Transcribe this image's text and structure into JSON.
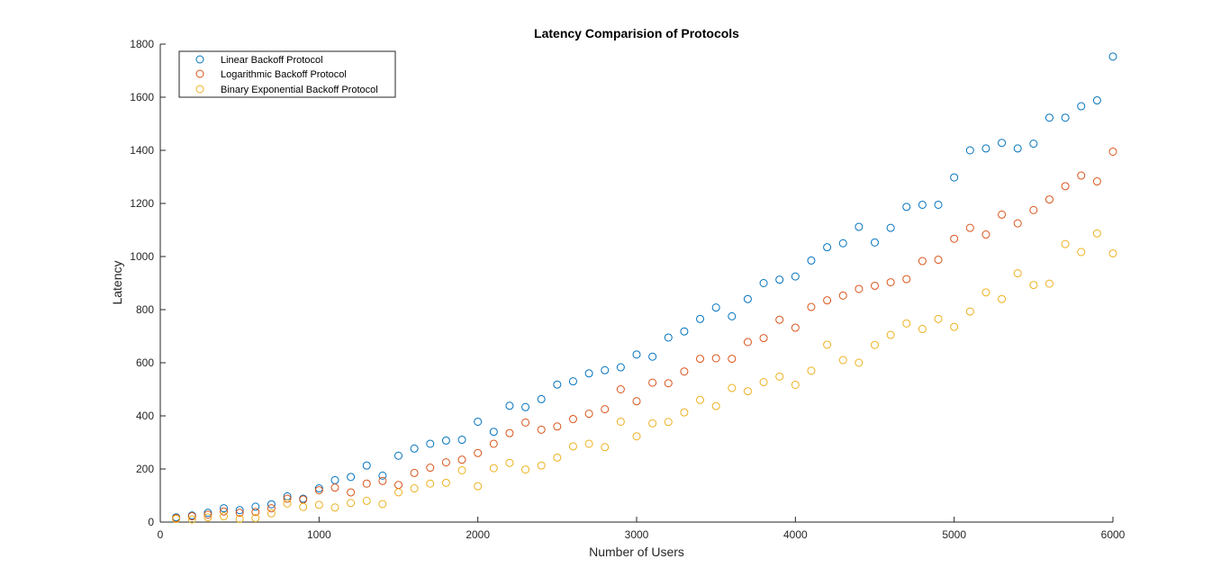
{
  "chart_data": {
    "type": "scatter",
    "title": "Latency Comparision of Protocols",
    "xlabel": "Number of Users",
    "ylabel": "Latency",
    "xlim": [
      0,
      6000
    ],
    "ylim": [
      0,
      1800
    ],
    "xticks": [
      0,
      1000,
      2000,
      3000,
      4000,
      5000,
      6000
    ],
    "yticks": [
      0,
      200,
      400,
      600,
      800,
      1000,
      1200,
      1400,
      1600,
      1800
    ],
    "grid": false,
    "legend_position": "top-left",
    "marker": "circle-open",
    "x": [
      100,
      200,
      300,
      400,
      500,
      600,
      700,
      800,
      900,
      1000,
      1100,
      1200,
      1300,
      1400,
      1500,
      1600,
      1700,
      1800,
      1900,
      2000,
      2100,
      2200,
      2300,
      2400,
      2500,
      2600,
      2700,
      2800,
      2900,
      3000,
      3100,
      3200,
      3300,
      3400,
      3500,
      3600,
      3700,
      3800,
      3900,
      4000,
      4100,
      4200,
      4300,
      4400,
      4500,
      4600,
      4700,
      4800,
      4900,
      5000,
      5100,
      5200,
      5300,
      5400,
      5500,
      5600,
      5700,
      5800,
      5900,
      6000
    ],
    "series": [
      {
        "name": "Linear Backoff Protocol",
        "color": "#0072BD",
        "values": [
          18,
          25,
          35,
          52,
          45,
          58,
          67,
          97,
          88,
          127,
          158,
          170,
          213,
          175,
          250,
          277,
          295,
          307,
          310,
          378,
          340,
          438,
          433,
          463,
          518,
          530,
          560,
          572,
          583,
          631,
          623,
          695,
          718,
          765,
          808,
          775,
          840,
          900,
          913,
          925,
          985,
          1035,
          1050,
          1112,
          1053,
          1108,
          1187,
          1195,
          1195,
          1298,
          1400,
          1407,
          1428,
          1407,
          1425,
          1523,
          1523,
          1566,
          1588,
          1753
        ]
      },
      {
        "name": "Logarithmic Backoff Protocol",
        "color": "#D95319",
        "values": [
          15,
          22,
          28,
          40,
          35,
          38,
          52,
          88,
          85,
          120,
          130,
          112,
          145,
          155,
          140,
          185,
          205,
          225,
          235,
          260,
          295,
          335,
          375,
          348,
          360,
          388,
          408,
          425,
          500,
          455,
          525,
          523,
          567,
          615,
          617,
          615,
          678,
          693,
          762,
          732,
          810,
          835,
          853,
          878,
          890,
          903,
          915,
          983,
          988,
          1067,
          1108,
          1083,
          1158,
          1125,
          1175,
          1215,
          1265,
          1305,
          1283,
          1395
        ]
      },
      {
        "name": "Binary Exponential Backoff Protocol",
        "color": "#EDB120",
        "values": [
          12,
          10,
          18,
          22,
          12,
          15,
          33,
          70,
          57,
          65,
          55,
          72,
          80,
          68,
          112,
          127,
          145,
          148,
          195,
          135,
          203,
          223,
          198,
          213,
          243,
          285,
          295,
          282,
          378,
          323,
          372,
          377,
          413,
          460,
          437,
          505,
          493,
          527,
          548,
          517,
          570,
          668,
          610,
          600,
          667,
          705,
          748,
          727,
          765,
          735,
          793,
          865,
          840,
          937,
          893,
          898,
          1047,
          1017,
          1087,
          1012
        ]
      }
    ]
  }
}
